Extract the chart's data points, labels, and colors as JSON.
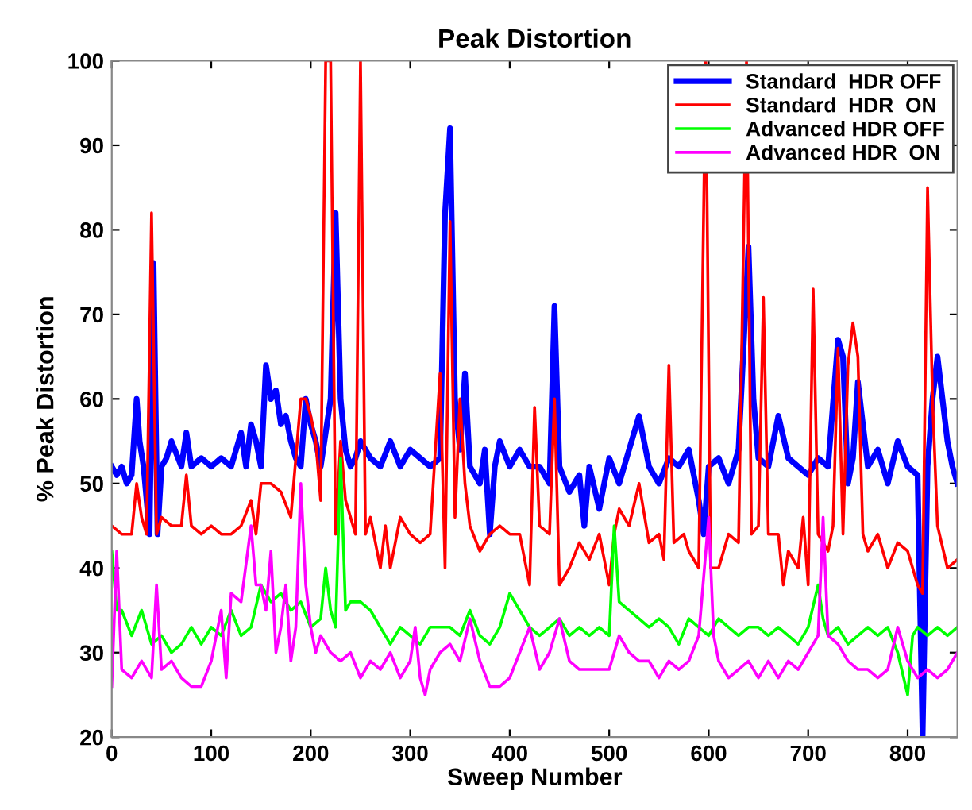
{
  "chart_data": {
    "type": "line",
    "title": "Peak Distortion",
    "xlabel": "Sweep Number",
    "ylabel": "% Peak Distortion",
    "xlim": [
      0,
      850
    ],
    "ylim": [
      20,
      100
    ],
    "xticks": [
      0,
      100,
      200,
      300,
      400,
      500,
      600,
      700,
      800
    ],
    "yticks": [
      20,
      30,
      40,
      50,
      60,
      70,
      80,
      90,
      100
    ],
    "grid": false,
    "legend": "top right",
    "marker": "none",
    "line_style": "solid",
    "series": [
      {
        "name": "Standard  HDR OFF",
        "color": "#0000ff",
        "x": [
          0,
          5,
          10,
          15,
          20,
          25,
          28,
          32,
          38,
          42,
          46,
          50,
          55,
          60,
          70,
          75,
          80,
          90,
          100,
          110,
          120,
          130,
          135,
          140,
          145,
          150,
          155,
          160,
          165,
          170,
          175,
          180,
          185,
          190,
          195,
          200,
          205,
          210,
          215,
          220,
          225,
          230,
          235,
          240,
          245,
          250,
          260,
          270,
          280,
          290,
          300,
          310,
          320,
          330,
          335,
          340,
          345,
          350,
          355,
          360,
          370,
          375,
          380,
          385,
          390,
          400,
          410,
          420,
          430,
          440,
          445,
          450,
          460,
          470,
          475,
          480,
          490,
          500,
          510,
          520,
          530,
          540,
          550,
          560,
          570,
          580,
          590,
          595,
          600,
          610,
          620,
          630,
          640,
          645,
          650,
          660,
          670,
          680,
          690,
          700,
          710,
          720,
          730,
          735,
          740,
          745,
          750,
          760,
          770,
          780,
          790,
          800,
          810,
          815,
          820,
          825,
          830,
          840,
          845,
          850
        ],
        "values": [
          52,
          51,
          52,
          50,
          51,
          60,
          55,
          52,
          44,
          76,
          44,
          52,
          53,
          55,
          52,
          56,
          52,
          53,
          52,
          53,
          52,
          56,
          52,
          57,
          55,
          52,
          64,
          60,
          61,
          57,
          58,
          55,
          53,
          52,
          60,
          57,
          55,
          52,
          56,
          60,
          82,
          60,
          54,
          52,
          53,
          55,
          53,
          52,
          55,
          52,
          54,
          53,
          52,
          53,
          82,
          92,
          60,
          54,
          63,
          52,
          50,
          54,
          44,
          52,
          55,
          52,
          54,
          52,
          52,
          50,
          71,
          52,
          49,
          51,
          45,
          52,
          47,
          53,
          50,
          54,
          58,
          52,
          50,
          53,
          52,
          54,
          48,
          44,
          52,
          53,
          50,
          54,
          78,
          60,
          53,
          52,
          58,
          53,
          52,
          51,
          53,
          52,
          67,
          65,
          50,
          53,
          62,
          52,
          54,
          50,
          55,
          52,
          51,
          20,
          52,
          60,
          65,
          55,
          52,
          50
        ]
      },
      {
        "name": "Standard  HDR  ON",
        "color": "#ff0000",
        "x": [
          0,
          10,
          20,
          25,
          30,
          35,
          40,
          45,
          50,
          60,
          70,
          75,
          80,
          90,
          100,
          110,
          120,
          130,
          140,
          145,
          150,
          160,
          170,
          180,
          190,
          195,
          200,
          205,
          210,
          215,
          220,
          225,
          230,
          235,
          245,
          250,
          255,
          260,
          270,
          275,
          280,
          290,
          300,
          310,
          320,
          330,
          335,
          340,
          345,
          350,
          355,
          360,
          370,
          380,
          390,
          400,
          410,
          420,
          425,
          430,
          440,
          445,
          450,
          460,
          470,
          480,
          490,
          500,
          505,
          510,
          520,
          530,
          540,
          550,
          555,
          560,
          565,
          575,
          580,
          590,
          597,
          602,
          610,
          620,
          630,
          638,
          643,
          650,
          655,
          660,
          670,
          675,
          680,
          690,
          695,
          700,
          705,
          710,
          720,
          725,
          730,
          735,
          740,
          745,
          750,
          755,
          760,
          770,
          780,
          790,
          800,
          810,
          815,
          820,
          825,
          830,
          840,
          850
        ],
        "values": [
          45,
          44,
          44,
          50,
          46,
          44,
          82,
          44,
          46,
          45,
          45,
          51,
          45,
          44,
          45,
          44,
          44,
          45,
          48,
          44,
          50,
          50,
          49,
          46,
          60,
          60,
          58,
          55,
          48,
          100,
          100,
          44,
          55,
          48,
          44,
          100,
          44,
          46,
          40,
          45,
          40,
          46,
          44,
          43,
          44,
          63,
          40,
          81,
          46,
          60,
          50,
          45,
          42,
          44,
          45,
          44,
          44,
          38,
          59,
          45,
          44,
          60,
          38,
          40,
          43,
          41,
          44,
          38,
          44,
          47,
          45,
          50,
          43,
          44,
          41,
          64,
          43,
          44,
          42,
          40,
          100,
          40,
          40,
          44,
          43,
          100,
          44,
          45,
          72,
          44,
          44,
          38,
          42,
          40,
          46,
          38,
          73,
          44,
          42,
          45,
          66,
          44,
          64,
          69,
          65,
          44,
          42,
          44,
          40,
          43,
          42,
          38,
          37,
          85,
          60,
          45,
          40,
          41
        ]
      },
      {
        "name": "Advanced HDR OFF",
        "color": "#00ff00",
        "x": [
          0,
          5,
          10,
          20,
          30,
          40,
          50,
          60,
          70,
          80,
          90,
          100,
          110,
          120,
          130,
          140,
          150,
          160,
          170,
          180,
          190,
          200,
          210,
          215,
          220,
          225,
          230,
          235,
          240,
          250,
          260,
          270,
          280,
          290,
          300,
          310,
          320,
          330,
          340,
          350,
          360,
          370,
          380,
          390,
          400,
          410,
          420,
          430,
          440,
          450,
          460,
          470,
          480,
          490,
          500,
          505,
          510,
          520,
          530,
          540,
          550,
          560,
          570,
          580,
          590,
          600,
          610,
          620,
          630,
          640,
          650,
          660,
          670,
          680,
          690,
          700,
          710,
          715,
          720,
          730,
          740,
          750,
          760,
          770,
          780,
          790,
          800,
          805,
          810,
          820,
          830,
          840,
          850
        ],
        "values": [
          42,
          35,
          35,
          32,
          35,
          31,
          32,
          30,
          31,
          33,
          31,
          33,
          32,
          35,
          32,
          33,
          38,
          36,
          37,
          35,
          36,
          33,
          34,
          40,
          35,
          33,
          53,
          35,
          36,
          36,
          35,
          33,
          31,
          33,
          32,
          31,
          33,
          33,
          33,
          32,
          35,
          32,
          31,
          33,
          37,
          35,
          33,
          32,
          33,
          34,
          32,
          33,
          32,
          33,
          32,
          45,
          36,
          35,
          34,
          33,
          34,
          33,
          31,
          34,
          33,
          32,
          34,
          33,
          32,
          33,
          33,
          32,
          33,
          32,
          31,
          33,
          38,
          34,
          32,
          33,
          31,
          32,
          33,
          32,
          33,
          30,
          25,
          32,
          33,
          32,
          33,
          32,
          33
        ]
      },
      {
        "name": "Advanced HDR  ON",
        "color": "#ff00ff",
        "x": [
          0,
          5,
          10,
          20,
          30,
          40,
          45,
          50,
          60,
          70,
          80,
          90,
          100,
          110,
          115,
          120,
          130,
          140,
          145,
          150,
          155,
          160,
          165,
          170,
          175,
          180,
          185,
          190,
          195,
          200,
          205,
          210,
          220,
          230,
          240,
          250,
          260,
          270,
          280,
          290,
          300,
          305,
          310,
          315,
          320,
          330,
          340,
          350,
          360,
          370,
          380,
          390,
          400,
          410,
          420,
          430,
          440,
          450,
          460,
          470,
          480,
          490,
          500,
          510,
          520,
          530,
          540,
          550,
          560,
          570,
          580,
          590,
          600,
          605,
          610,
          620,
          630,
          640,
          650,
          660,
          670,
          680,
          690,
          700,
          710,
          715,
          720,
          730,
          740,
          750,
          760,
          770,
          780,
          790,
          800,
          810,
          820,
          830,
          840,
          850
        ],
        "values": [
          26,
          42,
          28,
          27,
          29,
          27,
          38,
          28,
          29,
          27,
          26,
          26,
          29,
          35,
          27,
          37,
          36,
          45,
          38,
          38,
          35,
          42,
          30,
          33,
          38,
          29,
          33,
          50,
          38,
          33,
          30,
          32,
          30,
          29,
          30,
          27,
          29,
          28,
          30,
          27,
          29,
          33,
          27,
          25,
          28,
          30,
          31,
          29,
          34,
          29,
          26,
          26,
          27,
          30,
          33,
          28,
          30,
          34,
          29,
          28,
          28,
          28,
          28,
          32,
          30,
          29,
          29,
          27,
          29,
          28,
          29,
          32,
          46,
          32,
          29,
          27,
          28,
          29,
          27,
          29,
          27,
          29,
          28,
          30,
          32,
          46,
          32,
          31,
          29,
          28,
          28,
          27,
          28,
          33,
          29,
          27,
          28,
          27,
          28,
          30
        ]
      }
    ]
  }
}
